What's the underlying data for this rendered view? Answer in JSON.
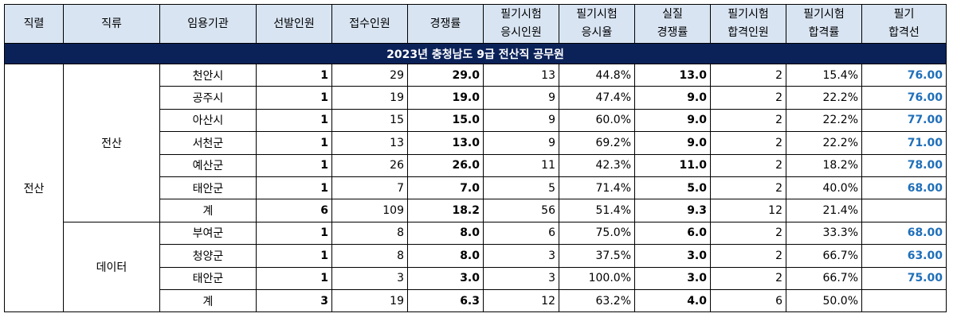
{
  "title": "2023년 충청남도 9급 전산직 공무원",
  "headers": [
    "직렬",
    "직류",
    "임용기관",
    "선발인원",
    "접수인원",
    "경쟁률",
    "필기시험\n응시인원",
    "필기시험\n응시율",
    "실질\n경쟁률",
    "필기시험\n합격인원",
    "필기시험\n합격률",
    "필기\n합격선"
  ],
  "series": "전산",
  "groups": [
    {
      "category": "전산",
      "rows": [
        {
          "agency": "천안시",
          "sel": "1",
          "recv": "29",
          "ratio": "29.0",
          "taker": "13",
          "take_rate": "44.8%",
          "real": "13.0",
          "pass": "2",
          "pass_rate": "15.4%",
          "cutoff": "76.00"
        },
        {
          "agency": "공주시",
          "sel": "1",
          "recv": "19",
          "ratio": "19.0",
          "taker": "9",
          "take_rate": "47.4%",
          "real": "9.0",
          "pass": "2",
          "pass_rate": "22.2%",
          "cutoff": "76.00"
        },
        {
          "agency": "아산시",
          "sel": "1",
          "recv": "15",
          "ratio": "15.0",
          "taker": "9",
          "take_rate": "60.0%",
          "real": "9.0",
          "pass": "2",
          "pass_rate": "22.2%",
          "cutoff": "77.00"
        },
        {
          "agency": "서천군",
          "sel": "1",
          "recv": "13",
          "ratio": "13.0",
          "taker": "9",
          "take_rate": "69.2%",
          "real": "9.0",
          "pass": "2",
          "pass_rate": "22.2%",
          "cutoff": "71.00"
        },
        {
          "agency": "예산군",
          "sel": "1",
          "recv": "26",
          "ratio": "26.0",
          "taker": "11",
          "take_rate": "42.3%",
          "real": "11.0",
          "pass": "2",
          "pass_rate": "18.2%",
          "cutoff": "78.00"
        },
        {
          "agency": "태안군",
          "sel": "1",
          "recv": "7",
          "ratio": "7.0",
          "taker": "5",
          "take_rate": "71.4%",
          "real": "5.0",
          "pass": "2",
          "pass_rate": "40.0%",
          "cutoff": "68.00"
        },
        {
          "agency": "계",
          "sel": "6",
          "recv": "109",
          "ratio": "18.2",
          "taker": "56",
          "take_rate": "51.4%",
          "real": "9.3",
          "pass": "12",
          "pass_rate": "21.4%",
          "cutoff": ""
        }
      ]
    },
    {
      "category": "데이터",
      "rows": [
        {
          "agency": "부여군",
          "sel": "1",
          "recv": "8",
          "ratio": "8.0",
          "taker": "6",
          "take_rate": "75.0%",
          "real": "6.0",
          "pass": "2",
          "pass_rate": "33.3%",
          "cutoff": "68.00"
        },
        {
          "agency": "청양군",
          "sel": "1",
          "recv": "8",
          "ratio": "8.0",
          "taker": "3",
          "take_rate": "37.5%",
          "real": "3.0",
          "pass": "2",
          "pass_rate": "66.7%",
          "cutoff": "63.00"
        },
        {
          "agency": "태안군",
          "sel": "1",
          "recv": "3",
          "ratio": "3.0",
          "taker": "3",
          "take_rate": "100.0%",
          "real": "3.0",
          "pass": "2",
          "pass_rate": "66.7%",
          "cutoff": "75.00"
        },
        {
          "agency": "계",
          "sel": "3",
          "recv": "19",
          "ratio": "6.3",
          "taker": "12",
          "take_rate": "63.2%",
          "real": "4.0",
          "pass": "6",
          "pass_rate": "50.0%",
          "cutoff": ""
        }
      ]
    }
  ],
  "colors": {
    "title_bg": "#0b2259",
    "header_bg": "#d8e4f2",
    "cutoff_text": "#1f6fb9"
  }
}
